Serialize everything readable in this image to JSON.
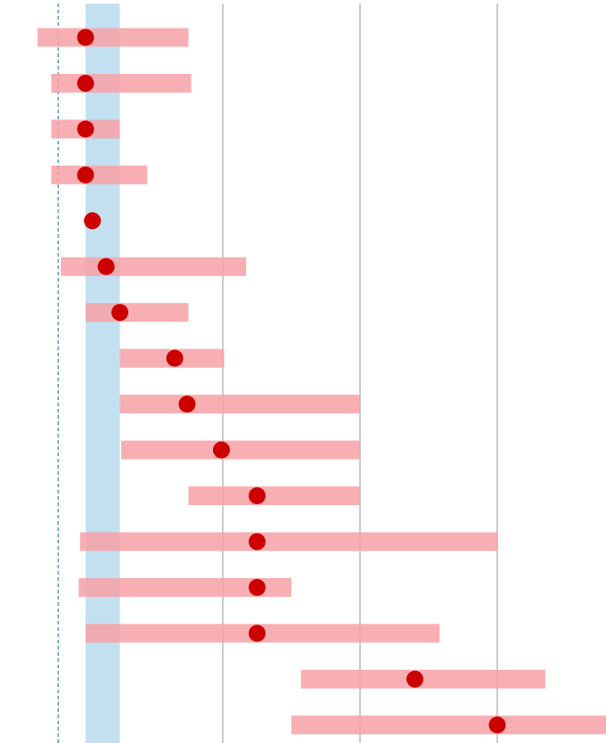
{
  "chart_data": {
    "type": "scatter",
    "title": "",
    "xlabel": "",
    "ylabel": "",
    "xlim": [
      -0.2,
      4.0
    ],
    "x_gridlines": [
      1,
      2,
      3
    ],
    "reference_line": {
      "x": -0.2,
      "style": "dashed"
    },
    "reference_band": {
      "x_min": 0,
      "x_max": 0.25
    },
    "grid": true,
    "legend": "none",
    "points": [
      {
        "x": 0.0,
        "low": -0.35,
        "high": 0.75
      },
      {
        "x": 0.0,
        "low": -0.25,
        "high": 0.77
      },
      {
        "x": 0.0,
        "low": -0.25,
        "high": 0.25
      },
      {
        "x": 0.0,
        "low": -0.25,
        "high": 0.45
      },
      {
        "x": 0.05,
        "low": 0.05,
        "high": 0.05
      },
      {
        "x": 0.15,
        "low": -0.18,
        "high": 1.17
      },
      {
        "x": 0.25,
        "low": 0.0,
        "high": 0.75
      },
      {
        "x": 0.65,
        "low": 0.25,
        "high": 1.01
      },
      {
        "x": 0.74,
        "low": 0.25,
        "high": 2.0
      },
      {
        "x": 0.99,
        "low": 0.26,
        "high": 2.0
      },
      {
        "x": 1.25,
        "low": 0.75,
        "high": 2.0
      },
      {
        "x": 1.25,
        "low": -0.04,
        "high": 3.0
      },
      {
        "x": 1.25,
        "low": -0.05,
        "high": 1.5
      },
      {
        "x": 1.25,
        "low": 0.0,
        "high": 2.58
      },
      {
        "x": 2.4,
        "low": 1.57,
        "high": 3.35
      },
      {
        "x": 3.0,
        "low": 1.5,
        "high": 4.0
      }
    ],
    "colors": {
      "point": "#cc0000",
      "interval": "#f7a1a6",
      "band": "#b9dbee",
      "gridline": "#9a9a9a",
      "reference_line": "#3b86c4"
    }
  }
}
